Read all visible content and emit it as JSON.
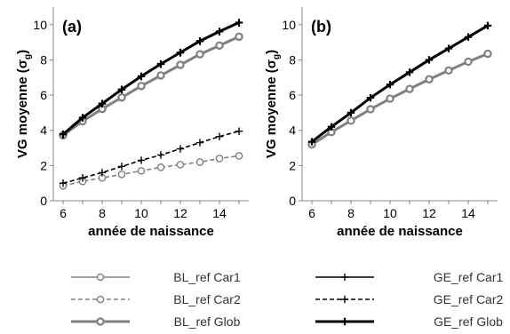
{
  "chart_data": [
    {
      "type": "line",
      "panel_label": "(a)",
      "xlabel": "année de naissance",
      "ylabel_main": "VG moyenne (σ",
      "ylabel_sub": "g",
      "ylabel_close": ")",
      "xlim": [
        5.5,
        15.5
      ],
      "ylim": [
        0,
        11
      ],
      "x_ticks": [
        6,
        8,
        10,
        12,
        14
      ],
      "y_ticks": [
        0,
        2,
        4,
        6,
        8,
        10
      ],
      "x": [
        6,
        7,
        8,
        9,
        10,
        11,
        12,
        13,
        14,
        15
      ],
      "series": [
        {
          "name": "BL_ref Car1",
          "color": "#808080",
          "style": "solid-circle",
          "values": [
            3.7,
            4.5,
            5.2,
            5.85,
            6.5,
            7.1,
            7.7,
            8.3,
            8.8,
            9.3
          ]
        },
        {
          "name": "BL_ref Car2",
          "color": "#808080",
          "style": "dashed-circle",
          "values": [
            0.85,
            1.1,
            1.3,
            1.5,
            1.7,
            1.9,
            2.05,
            2.2,
            2.4,
            2.55
          ]
        },
        {
          "name": "BL_ref Glob",
          "color": "#808080",
          "style": "thick-circle",
          "values": [
            3.72,
            4.52,
            5.22,
            5.87,
            6.52,
            7.12,
            7.72,
            8.32,
            8.82,
            9.32
          ]
        },
        {
          "name": "GE_ref Car1",
          "color": "#000000",
          "style": "solid-plus",
          "values": [
            3.75,
            4.7,
            5.5,
            6.3,
            7.05,
            7.75,
            8.4,
            9.05,
            9.6,
            10.1
          ]
        },
        {
          "name": "GE_ref Car2",
          "color": "#000000",
          "style": "dashed-plus",
          "values": [
            1.0,
            1.3,
            1.6,
            1.95,
            2.3,
            2.6,
            2.95,
            3.3,
            3.65,
            3.95
          ]
        },
        {
          "name": "GE_ref Glob",
          "color": "#000000",
          "style": "thick-plus",
          "values": [
            3.78,
            4.72,
            5.52,
            6.32,
            7.07,
            7.77,
            8.42,
            9.07,
            9.62,
            10.12
          ]
        }
      ]
    },
    {
      "type": "line",
      "panel_label": "(b)",
      "xlabel": "année de naissance",
      "ylabel_main": "VG moyenne (σ",
      "ylabel_sub": "g",
      "ylabel_close": ")",
      "xlim": [
        5.5,
        15.5
      ],
      "ylim": [
        0,
        11
      ],
      "x_ticks": [
        6,
        8,
        10,
        12,
        14
      ],
      "y_ticks": [
        0,
        2,
        4,
        6,
        8,
        10
      ],
      "x": [
        6,
        7,
        8,
        9,
        10,
        11,
        12,
        13,
        14,
        15
      ],
      "series": [
        {
          "name": "BL_ref Glob",
          "color": "#808080",
          "style": "thick-circle",
          "values": [
            3.2,
            3.9,
            4.55,
            5.2,
            5.8,
            6.35,
            6.9,
            7.4,
            7.9,
            8.35
          ]
        },
        {
          "name": "GE_ref Glob",
          "color": "#000000",
          "style": "thick-plus",
          "values": [
            3.35,
            4.2,
            5.0,
            5.85,
            6.6,
            7.3,
            8.0,
            8.65,
            9.3,
            9.95
          ]
        }
      ]
    }
  ],
  "legend": [
    {
      "label": "BL_ref Car1",
      "color": "#808080",
      "style": "solid-circle"
    },
    {
      "label": "GE_ref Car1",
      "color": "#000000",
      "style": "solid-plus"
    },
    {
      "label": "BL_ref Car2",
      "color": "#808080",
      "style": "dashed-circle"
    },
    {
      "label": "GE_ref Car2",
      "color": "#000000",
      "style": "dashed-plus"
    },
    {
      "label": "BL_ref Glob",
      "color": "#808080",
      "style": "thick-circle"
    },
    {
      "label": "GE_ref Glob",
      "color": "#000000",
      "style": "thick-plus"
    }
  ]
}
